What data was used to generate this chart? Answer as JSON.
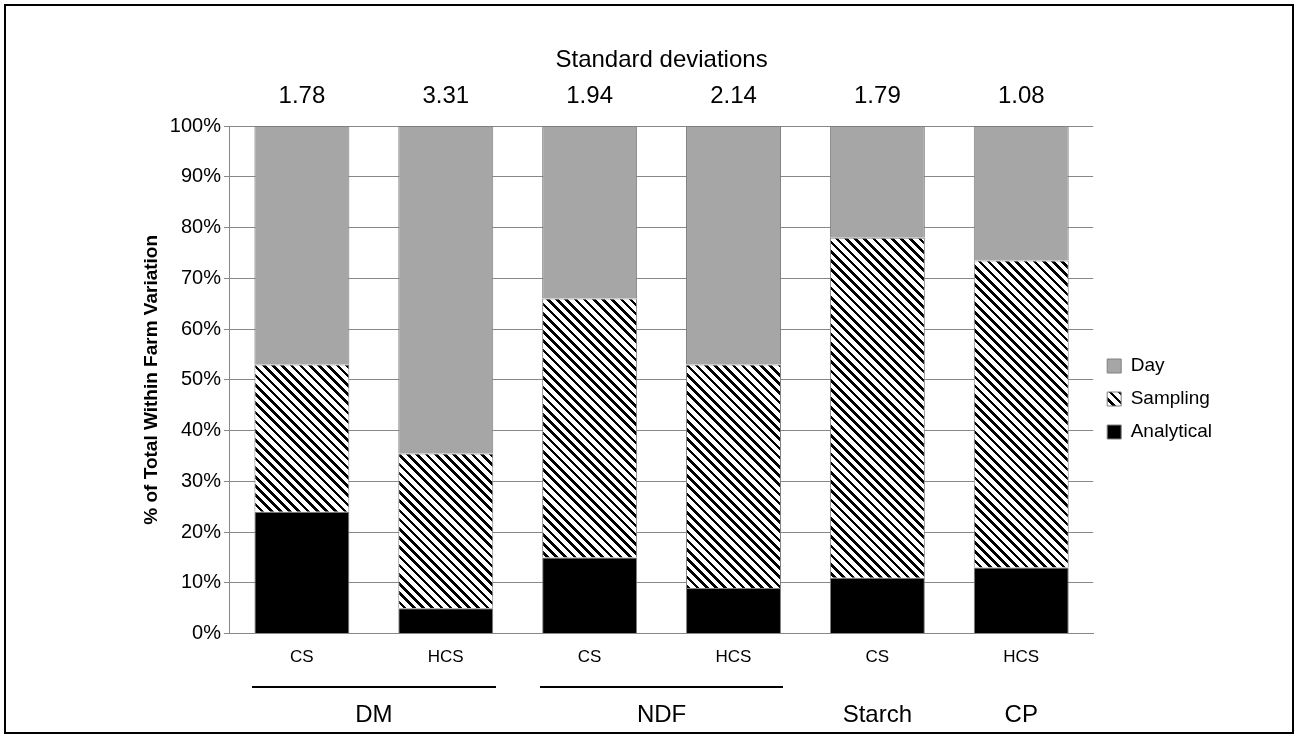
{
  "chart_data": {
    "type": "bar",
    "stacked": true,
    "ylabel": "% of Total Within Farm Variation",
    "categories": [
      "CS",
      "HCS",
      "CS",
      "HCS",
      "CS",
      "HCS"
    ],
    "series": [
      {
        "name": "Analytical",
        "color": "#000000",
        "values": [
          24,
          5,
          15,
          9,
          11,
          13
        ]
      },
      {
        "name": "Sampling",
        "color": "#ffffff",
        "values": [
          29,
          30.5,
          51,
          44,
          67,
          60.5
        ]
      },
      {
        "name": "Day",
        "color": "#a6a6a6",
        "values": [
          47,
          64.5,
          34,
          47,
          22,
          26.5
        ]
      }
    ],
    "ylim": [
      0,
      100
    ],
    "yticks": [
      {
        "value": 0,
        "label": "0%"
      },
      {
        "value": 10,
        "label": "10%"
      },
      {
        "value": 20,
        "label": "20%"
      },
      {
        "value": 30,
        "label": "30%"
      },
      {
        "value": 40,
        "label": "40%"
      },
      {
        "value": 50,
        "label": "50%"
      },
      {
        "value": 60,
        "label": "60%"
      },
      {
        "value": 70,
        "label": "70%"
      },
      {
        "value": 80,
        "label": "80%"
      },
      {
        "value": 90,
        "label": "90%"
      },
      {
        "value": 100,
        "label": "100%"
      }
    ],
    "grid": "y",
    "legend": "right",
    "annotations": [
      "Standard deviations",
      "1.78",
      "3.31",
      "1.94",
      "2.14",
      "1.79",
      "1.08",
      "DM",
      "NDF",
      "Starch",
      "CP"
    ]
  }
}
